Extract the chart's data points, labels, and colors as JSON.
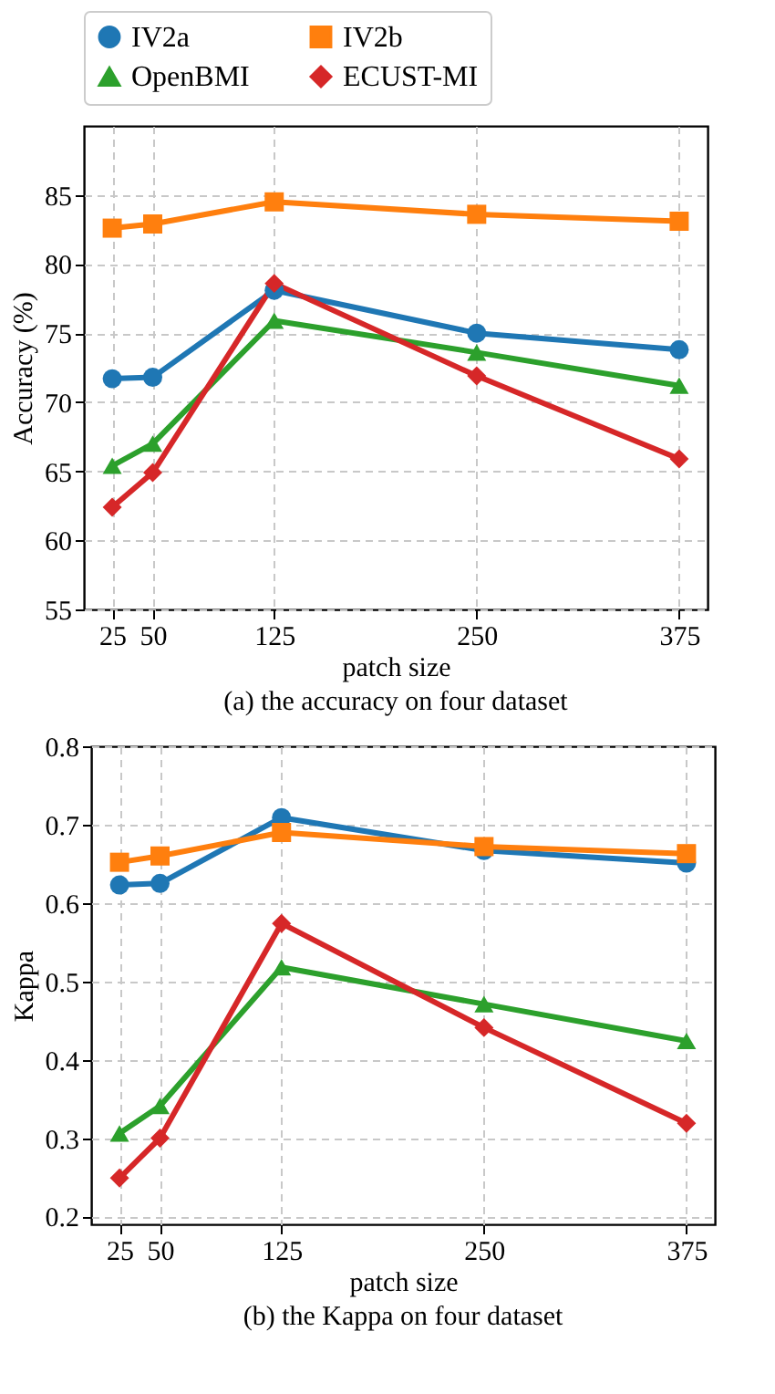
{
  "chart_data": [
    {
      "type": "line",
      "title": "(a) the accuracy on four dataset",
      "xlabel": "patch size",
      "ylabel": "Accuracy (%)",
      "x": [
        25,
        50,
        125,
        250,
        375
      ],
      "xlim": [
        7.5,
        392.5
      ],
      "xticks": [
        25,
        50,
        125,
        250,
        375
      ],
      "ylim": [
        55,
        90
      ],
      "yticks": [
        55,
        60,
        65,
        70,
        75,
        80,
        85
      ],
      "grid": true,
      "legend": "top",
      "line_style": "solid",
      "series": [
        {
          "name": "IV2a",
          "color": "#1f77b4",
          "marker": "circle",
          "values": [
            71.7,
            71.8,
            78.1,
            75.0,
            73.8
          ]
        },
        {
          "name": "IV2b",
          "color": "#ff7f0e",
          "marker": "square",
          "values": [
            82.6,
            82.9,
            84.5,
            83.6,
            83.1
          ]
        },
        {
          "name": "OpenBMI",
          "color": "#2ca02c",
          "marker": "triangle",
          "values": [
            65.4,
            67.0,
            75.9,
            73.6,
            71.2
          ]
        },
        {
          "name": "ECUST-MI",
          "color": "#d62728",
          "marker": "diamond",
          "values": [
            62.4,
            64.9,
            78.6,
            71.9,
            65.9
          ]
        }
      ]
    },
    {
      "type": "line",
      "title": "(b) the Kappa on four dataset",
      "xlabel": "patch size",
      "ylabel": "Kappa",
      "x": [
        25,
        50,
        125,
        250,
        375
      ],
      "xlim": [
        7.5,
        392.5
      ],
      "xticks": [
        25,
        50,
        125,
        250,
        375
      ],
      "ylim": [
        0.19,
        0.8
      ],
      "yticks": [
        0.2,
        0.3,
        0.4,
        0.5,
        0.6,
        0.7,
        0.8
      ],
      "grid": true,
      "line_style": "solid",
      "series": [
        {
          "color": "#1f77b4",
          "marker": "circle",
          "values": [
            0.623,
            0.625,
            0.709,
            0.667,
            0.651
          ]
        },
        {
          "color": "#ff7f0e",
          "marker": "square",
          "values": [
            0.652,
            0.66,
            0.69,
            0.672,
            0.663
          ]
        },
        {
          "color": "#2ca02c",
          "marker": "triangle",
          "values": [
            0.306,
            0.341,
            0.518,
            0.471,
            0.424
          ]
        },
        {
          "color": "#d62728",
          "marker": "diamond",
          "values": [
            0.249,
            0.3,
            0.574,
            0.441,
            0.319
          ]
        }
      ]
    }
  ]
}
